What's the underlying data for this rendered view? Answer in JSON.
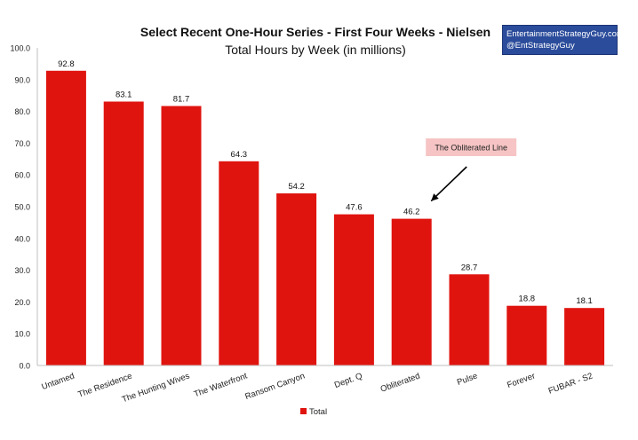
{
  "chart_data": {
    "type": "bar",
    "title": "Select Recent One-Hour Series - First Four Weeks - Nielsen",
    "subtitle": "Total Hours by Week (in millions)",
    "categories": [
      "Untamed",
      "The Residence",
      "The Hunting Wives",
      "The Waterfront",
      "Ransom Canyon",
      "Dept. Q",
      "Obliterated",
      "Pulse",
      "Forever",
      "FUBAR - S2"
    ],
    "series": [
      {
        "name": "Total",
        "values": [
          92.8,
          83.1,
          81.7,
          64.3,
          54.2,
          47.6,
          46.2,
          28.7,
          18.8,
          18.1
        ],
        "color": "#e0140f"
      }
    ],
    "ylim": [
      0,
      100
    ],
    "yticks": [
      "0.0",
      "10.0",
      "20.0",
      "30.0",
      "40.0",
      "50.0",
      "60.0",
      "70.0",
      "80.0",
      "90.0",
      "100.0"
    ],
    "grid": false,
    "legend_position": "bottom",
    "annotation": {
      "text": "The Obliterated Line",
      "target_category": "Obliterated",
      "background": "#f6c4c4"
    }
  },
  "credit": {
    "line1": "EntertainmentStrategyGuy.com",
    "line2": "@EntStrategyGuy",
    "background": "#2b4c9b"
  }
}
